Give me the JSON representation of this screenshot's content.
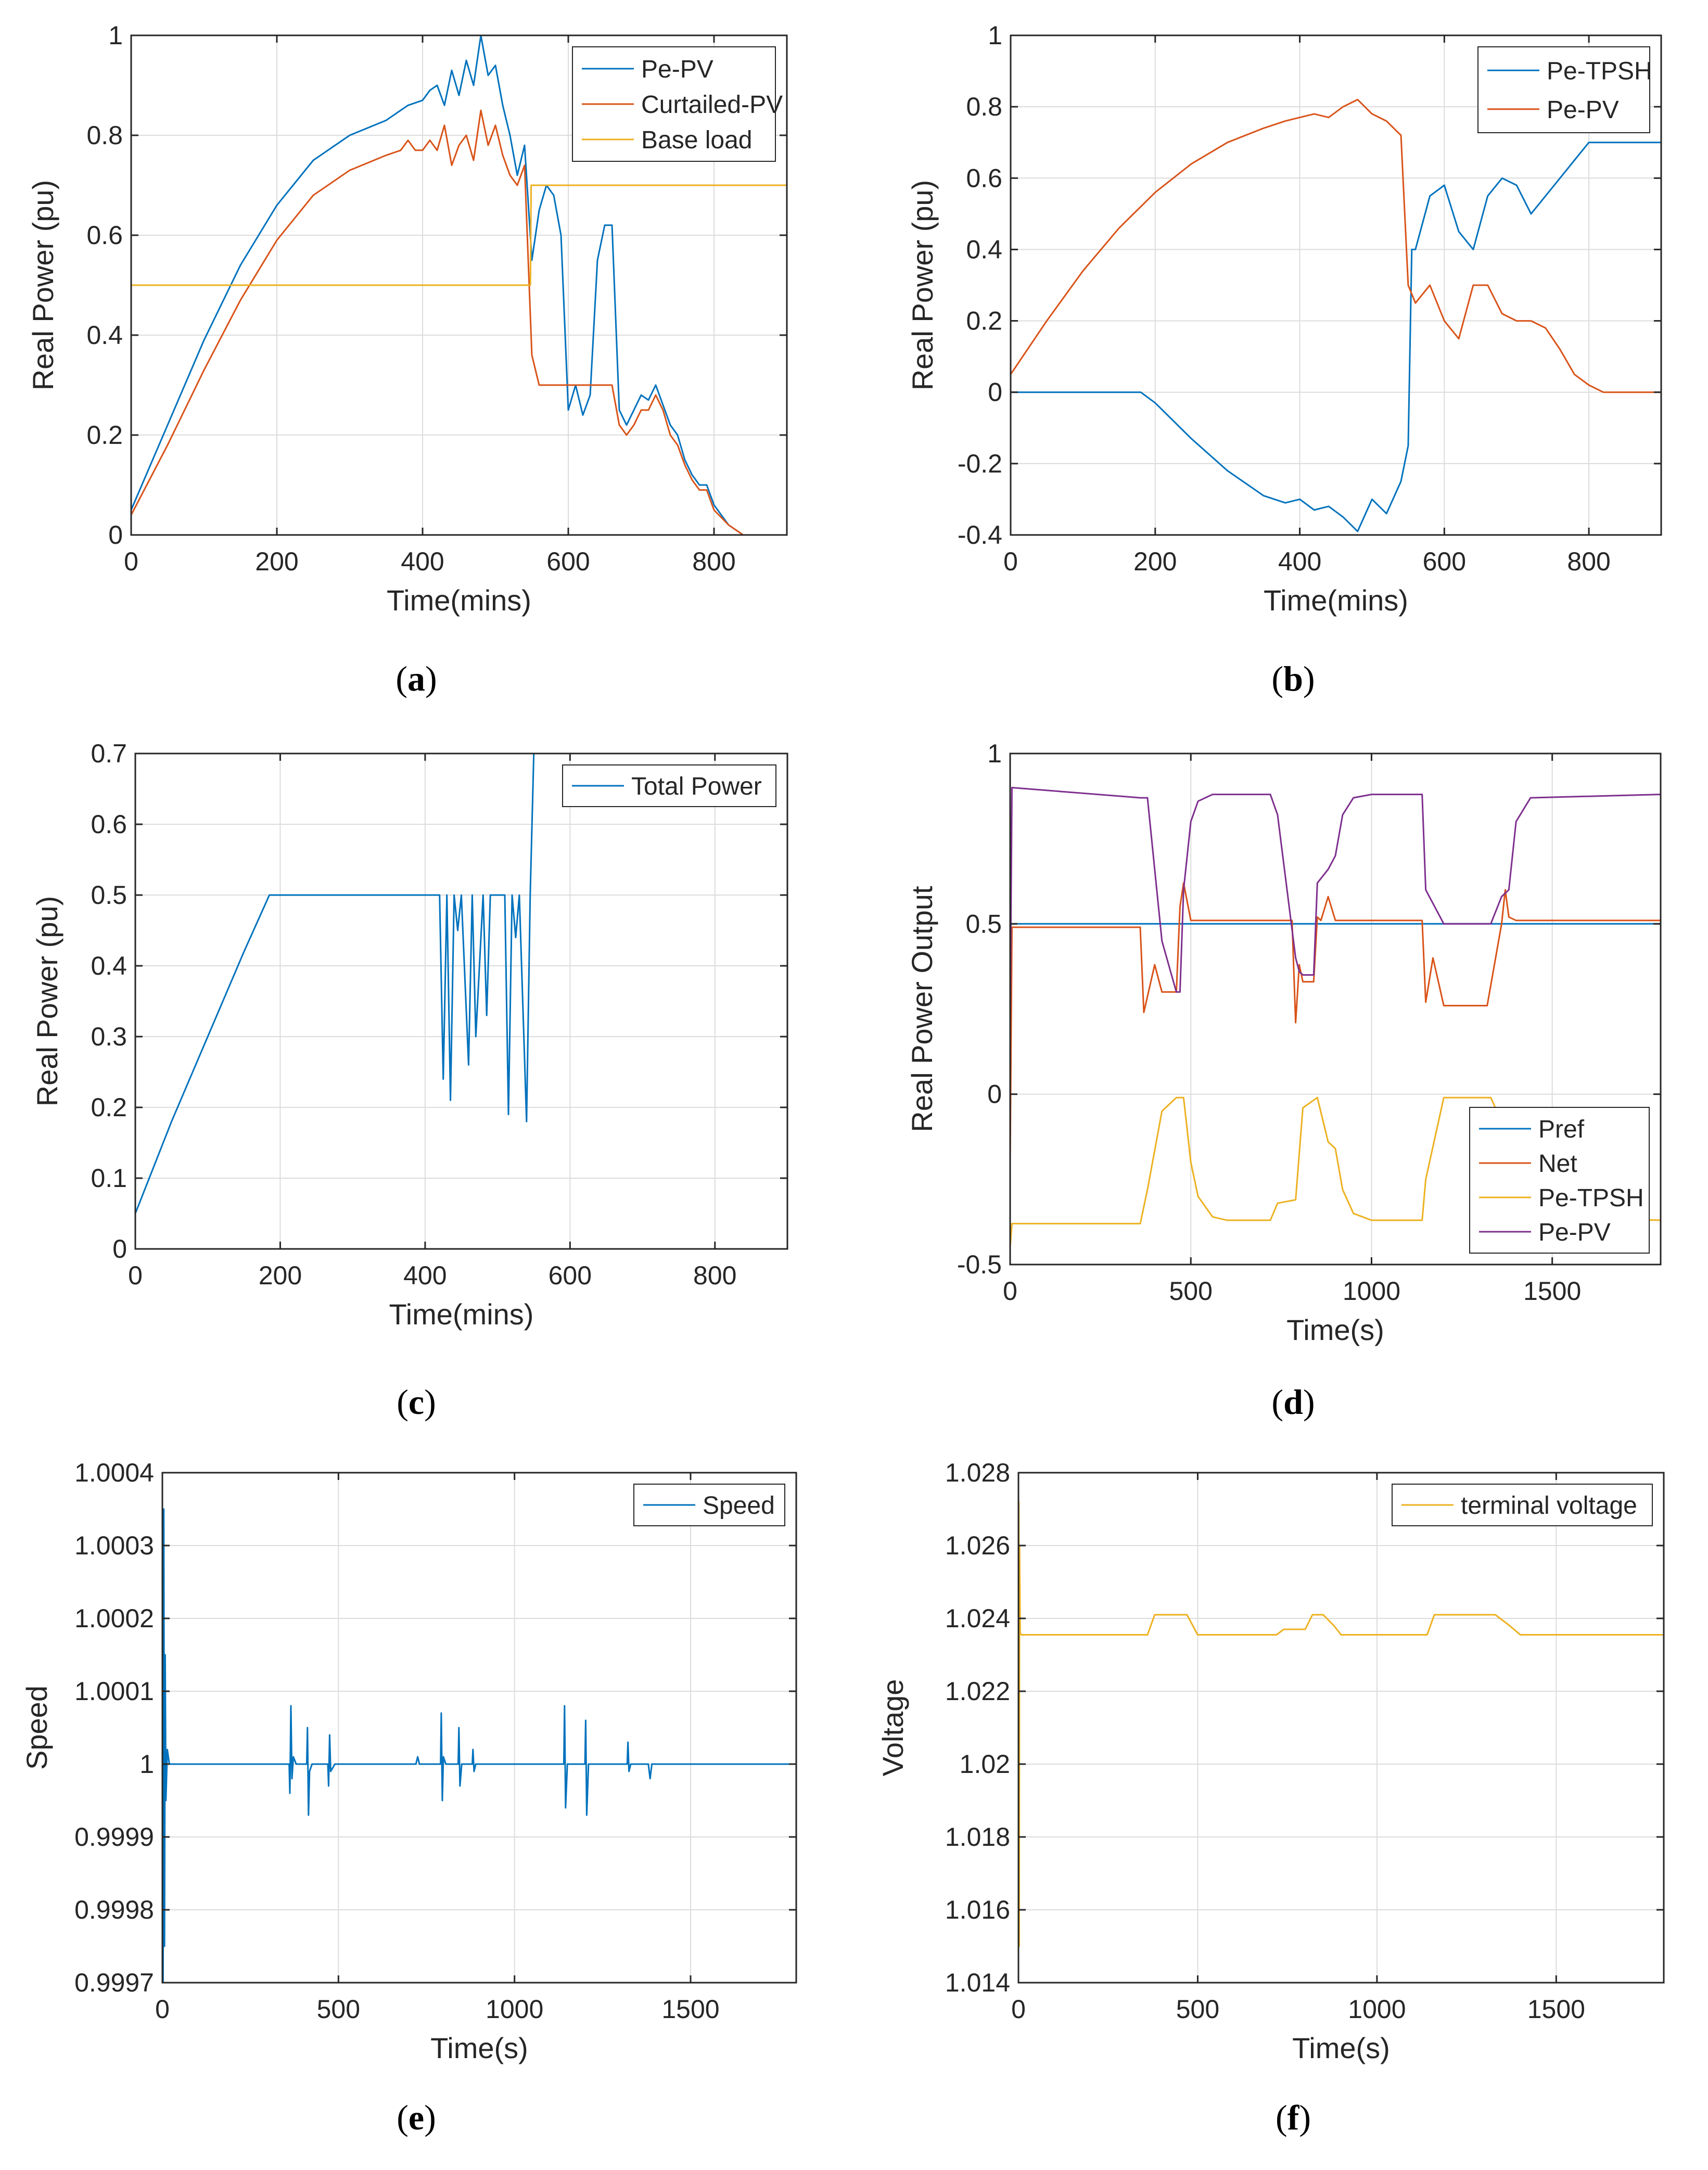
{
  "colors": {
    "blue": "#0072BD",
    "orange": "#D95319",
    "yellow": "#EDB120",
    "purple": "#7E2F8E",
    "grid": "#dcdcdc",
    "axis": "#262626"
  },
  "captions": {
    "a": "a",
    "b": "b",
    "c": "c",
    "d": "d",
    "e": "e",
    "f": "f"
  },
  "chart_data": [
    {
      "id": "a",
      "type": "line",
      "xlabel": "Time(mins)",
      "ylabel": "Real Power (pu)",
      "xlim": [
        0,
        900
      ],
      "ylim": [
        0,
        1
      ],
      "xticks": [
        0,
        200,
        400,
        600,
        800
      ],
      "yticks": [
        0,
        0.2,
        0.4,
        0.6,
        0.8,
        1
      ],
      "xtick_labels": [
        "0",
        "200",
        "400",
        "600",
        "800"
      ],
      "ytick_labels": [
        "0",
        "0.2",
        "0.4",
        "0.6",
        "0.8",
        "1"
      ],
      "grid": true,
      "legend_position": "top-right",
      "series": [
        {
          "name": "Pe-PV",
          "color": "#0072BD",
          "x": [
            0,
            50,
            100,
            150,
            200,
            250,
            300,
            350,
            380,
            400,
            410,
            420,
            430,
            440,
            450,
            460,
            470,
            480,
            490,
            500,
            510,
            520,
            530,
            540,
            550,
            560,
            570,
            580,
            590,
            600,
            610,
            620,
            630,
            640,
            650,
            660,
            670,
            680,
            690,
            700,
            710,
            720,
            730,
            740,
            750,
            760,
            770,
            780,
            790,
            800,
            820,
            840,
            860,
            900
          ],
          "y": [
            0.05,
            0.22,
            0.39,
            0.54,
            0.66,
            0.75,
            0.8,
            0.83,
            0.86,
            0.87,
            0.89,
            0.9,
            0.86,
            0.93,
            0.88,
            0.95,
            0.9,
            1.0,
            0.92,
            0.94,
            0.86,
            0.8,
            0.72,
            0.78,
            0.55,
            0.65,
            0.7,
            0.68,
            0.6,
            0.25,
            0.3,
            0.24,
            0.28,
            0.55,
            0.62,
            0.62,
            0.25,
            0.22,
            0.25,
            0.28,
            0.27,
            0.3,
            0.26,
            0.22,
            0.2,
            0.15,
            0.12,
            0.1,
            0.1,
            0.06,
            0.02,
            0.0,
            0.0,
            0.0
          ]
        },
        {
          "name": "Curtailed-PV",
          "color": "#D95319",
          "x": [
            0,
            50,
            100,
            150,
            200,
            250,
            300,
            350,
            370,
            380,
            390,
            400,
            410,
            420,
            430,
            440,
            450,
            460,
            470,
            480,
            490,
            500,
            510,
            520,
            530,
            540,
            550,
            560,
            570,
            580,
            590,
            600,
            610,
            620,
            630,
            640,
            650,
            660,
            670,
            680,
            690,
            700,
            710,
            720,
            730,
            740,
            750,
            760,
            770,
            780,
            790,
            800,
            820,
            840,
            860,
            900
          ],
          "y": [
            0.04,
            0.18,
            0.33,
            0.47,
            0.59,
            0.68,
            0.73,
            0.76,
            0.77,
            0.79,
            0.77,
            0.77,
            0.79,
            0.77,
            0.82,
            0.74,
            0.78,
            0.8,
            0.75,
            0.85,
            0.78,
            0.82,
            0.76,
            0.72,
            0.7,
            0.74,
            0.36,
            0.3,
            0.3,
            0.3,
            0.3,
            0.3,
            0.3,
            0.3,
            0.3,
            0.3,
            0.3,
            0.3,
            0.22,
            0.2,
            0.22,
            0.25,
            0.25,
            0.28,
            0.25,
            0.2,
            0.18,
            0.14,
            0.11,
            0.09,
            0.09,
            0.05,
            0.02,
            0.0,
            0.0,
            0.0
          ]
        },
        {
          "name": "Base load",
          "color": "#EDB120",
          "x": [
            0,
            548,
            549,
            900
          ],
          "y": [
            0.5,
            0.5,
            0.7,
            0.7
          ]
        }
      ]
    },
    {
      "id": "b",
      "type": "line",
      "xlabel": "Time(mins)",
      "ylabel": "Real Power (pu)",
      "xlim": [
        0,
        900
      ],
      "ylim": [
        -0.4,
        1
      ],
      "xticks": [
        0,
        200,
        400,
        600,
        800
      ],
      "yticks": [
        -0.4,
        -0.2,
        0,
        0.2,
        0.4,
        0.6,
        0.8,
        1
      ],
      "xtick_labels": [
        "0",
        "200",
        "400",
        "600",
        "800"
      ],
      "ytick_labels": [
        "-0.4",
        "-0.2",
        "0",
        "0.2",
        "0.4",
        "0.6",
        "0.8",
        "1"
      ],
      "grid": true,
      "legend_position": "top-right",
      "series": [
        {
          "name": "Pe-TPSH",
          "color": "#0072BD",
          "x": [
            0,
            180,
            200,
            250,
            300,
            350,
            380,
            400,
            420,
            440,
            460,
            480,
            500,
            520,
            540,
            550,
            555,
            560,
            580,
            600,
            620,
            640,
            660,
            680,
            700,
            720,
            740,
            760,
            780,
            800,
            850,
            900
          ],
          "y": [
            0,
            0,
            -0.03,
            -0.13,
            -0.22,
            -0.29,
            -0.31,
            -0.3,
            -0.33,
            -0.32,
            -0.35,
            -0.39,
            -0.3,
            -0.34,
            -0.25,
            -0.15,
            0.4,
            0.4,
            0.55,
            0.58,
            0.45,
            0.4,
            0.55,
            0.6,
            0.58,
            0.5,
            0.55,
            0.6,
            0.65,
            0.7,
            0.7,
            0.7
          ]
        },
        {
          "name": "Pe-PV",
          "color": "#D95319",
          "x": [
            0,
            50,
            100,
            150,
            200,
            250,
            300,
            350,
            380,
            400,
            420,
            440,
            460,
            480,
            500,
            520,
            540,
            550,
            560,
            580,
            600,
            620,
            640,
            660,
            680,
            700,
            720,
            740,
            760,
            780,
            800,
            820,
            840,
            900
          ],
          "y": [
            0.05,
            0.2,
            0.34,
            0.46,
            0.56,
            0.64,
            0.7,
            0.74,
            0.76,
            0.77,
            0.78,
            0.77,
            0.8,
            0.82,
            0.78,
            0.76,
            0.72,
            0.3,
            0.25,
            0.3,
            0.2,
            0.15,
            0.3,
            0.3,
            0.22,
            0.2,
            0.2,
            0.18,
            0.12,
            0.05,
            0.02,
            0.0,
            0.0,
            0.0
          ]
        }
      ]
    },
    {
      "id": "c",
      "type": "line",
      "xlabel": "Time(mins)",
      "ylabel": "Real Power (pu)",
      "xlim": [
        0,
        900
      ],
      "ylim": [
        0,
        0.7
      ],
      "xticks": [
        0,
        200,
        400,
        600,
        800
      ],
      "yticks": [
        0,
        0.1,
        0.2,
        0.3,
        0.4,
        0.5,
        0.6,
        0.7
      ],
      "xtick_labels": [
        "0",
        "200",
        "400",
        "600",
        "800"
      ],
      "ytick_labels": [
        "0",
        "0.1",
        "0.2",
        "0.3",
        "0.4",
        "0.5",
        "0.6",
        "0.7"
      ],
      "grid": true,
      "legend_position": "top-right",
      "series": [
        {
          "name": "Total Power",
          "color": "#0072BD",
          "x": [
            0,
            50,
            100,
            150,
            185,
            420,
            425,
            430,
            435,
            440,
            445,
            450,
            460,
            465,
            470,
            480,
            485,
            490,
            500,
            510,
            515,
            520,
            525,
            530,
            540,
            545,
            550,
            900
          ],
          "y": [
            0.05,
            0.18,
            0.3,
            0.42,
            0.5,
            0.5,
            0.24,
            0.5,
            0.21,
            0.5,
            0.45,
            0.5,
            0.26,
            0.5,
            0.3,
            0.5,
            0.33,
            0.5,
            0.5,
            0.5,
            0.19,
            0.5,
            0.44,
            0.5,
            0.18,
            0.5,
            0.7,
            0.7
          ]
        }
      ]
    },
    {
      "id": "d",
      "type": "line",
      "xlabel": "Time(s)",
      "ylabel": "Real Power Output",
      "xlim": [
        0,
        1800
      ],
      "ylim": [
        -0.5,
        1
      ],
      "xticks": [
        0,
        500,
        1000,
        1500
      ],
      "yticks": [
        -0.5,
        0,
        0.5,
        1
      ],
      "xtick_labels": [
        "0",
        "500",
        "1000",
        "1500"
      ],
      "ytick_labels": [
        "-0.5",
        "0",
        "0.5",
        "1"
      ],
      "grid": true,
      "legend_position": "bottom-right",
      "series": [
        {
          "name": "Pref",
          "color": "#0072BD",
          "x": [
            0,
            1800
          ],
          "y": [
            0.5,
            0.5
          ]
        },
        {
          "name": "Net",
          "color": "#D95319",
          "x": [
            0,
            5,
            360,
            370,
            400,
            420,
            460,
            470,
            480,
            500,
            700,
            720,
            780,
            790,
            800,
            810,
            840,
            850,
            860,
            880,
            900,
            1000,
            1140,
            1150,
            1170,
            1200,
            1320,
            1360,
            1370,
            1380,
            1400,
            1800
          ],
          "y": [
            -0.2,
            0.49,
            0.49,
            0.24,
            0.38,
            0.3,
            0.3,
            0.55,
            0.62,
            0.51,
            0.51,
            0.51,
            0.51,
            0.21,
            0.38,
            0.33,
            0.33,
            0.52,
            0.51,
            0.58,
            0.51,
            0.51,
            0.51,
            0.27,
            0.4,
            0.26,
            0.26,
            0.5,
            0.6,
            0.52,
            0.51,
            0.51
          ]
        },
        {
          "name": "Pe-TPSH",
          "color": "#EDB120",
          "x": [
            0,
            5,
            360,
            380,
            420,
            460,
            480,
            500,
            520,
            560,
            600,
            720,
            740,
            790,
            810,
            850,
            880,
            900,
            920,
            950,
            1000,
            1140,
            1150,
            1200,
            1330,
            1360,
            1380,
            1400,
            1440,
            1800
          ],
          "y": [
            -0.45,
            -0.38,
            -0.38,
            -0.28,
            -0.05,
            -0.01,
            -0.01,
            -0.2,
            -0.3,
            -0.36,
            -0.37,
            -0.37,
            -0.32,
            -0.31,
            -0.04,
            -0.01,
            -0.14,
            -0.16,
            -0.28,
            -0.35,
            -0.37,
            -0.37,
            -0.25,
            -0.01,
            -0.01,
            -0.08,
            -0.09,
            -0.28,
            -0.36,
            -0.37
          ]
        },
        {
          "name": "Pe-PV",
          "color": "#7E2F8E",
          "x": [
            0,
            5,
            360,
            380,
            420,
            460,
            470,
            480,
            500,
            520,
            560,
            600,
            720,
            740,
            790,
            800,
            810,
            840,
            850,
            880,
            900,
            920,
            950,
            1000,
            1140,
            1150,
            1200,
            1330,
            1360,
            1380,
            1400,
            1440,
            1800
          ],
          "y": [
            0.2,
            0.9,
            0.87,
            0.87,
            0.45,
            0.3,
            0.3,
            0.6,
            0.8,
            0.86,
            0.88,
            0.88,
            0.88,
            0.82,
            0.4,
            0.36,
            0.35,
            0.35,
            0.62,
            0.66,
            0.7,
            0.82,
            0.87,
            0.88,
            0.88,
            0.6,
            0.5,
            0.5,
            0.58,
            0.6,
            0.8,
            0.87,
            0.88
          ]
        }
      ]
    },
    {
      "id": "e",
      "type": "line",
      "xlabel": "Time(s)",
      "ylabel": "Speed",
      "xlim": [
        0,
        1800
      ],
      "ylim": [
        0.9997,
        1.0004
      ],
      "xticks": [
        0,
        500,
        1000,
        1500
      ],
      "yticks": [
        0.9997,
        0.9998,
        0.9999,
        1,
        1.0001,
        1.0002,
        1.0003,
        1.0004
      ],
      "xtick_labels": [
        "0",
        "500",
        "1000",
        "1500"
      ],
      "ytick_labels": [
        "0.9997",
        "0.9998",
        "0.9999",
        "1",
        "1.0001",
        "1.0002",
        "1.0003",
        "1.0004"
      ],
      "grid": true,
      "legend_position": "top-right",
      "series": [
        {
          "name": "Speed",
          "color": "#0072BD",
          "x": [
            0,
            2,
            4,
            6,
            8,
            10,
            14,
            20,
            360,
            362,
            365,
            368,
            372,
            380,
            410,
            412,
            415,
            418,
            425,
            470,
            472,
            475,
            478,
            490,
            720,
            725,
            730,
            790,
            792,
            795,
            798,
            805,
            840,
            842,
            845,
            850,
            880,
            882,
            885,
            890,
            1140,
            1142,
            1145,
            1150,
            1200,
            1202,
            1205,
            1210,
            1320,
            1322,
            1325,
            1330,
            1380,
            1385,
            1390,
            1800
          ],
          "y": [
            1.0,
            0.9997,
            1.00035,
            0.99975,
            1.00015,
            0.99995,
            1.00002,
            1.0,
            1.0,
            0.99996,
            1.00008,
            0.99998,
            1.00001,
            1.0,
            1.0,
            1.00005,
            0.99993,
            0.99999,
            1.0,
            1.0,
            0.99997,
            1.00004,
            0.99999,
            1.0,
            1.0,
            1.00001,
            1.0,
            1.0,
            1.00007,
            0.99995,
            1.00001,
            1.0,
            1.0,
            1.00005,
            0.99997,
            1.0,
            1.0,
            1.00002,
            0.99999,
            1.0,
            1.0,
            1.00008,
            0.99994,
            1.0,
            1.0,
            1.00006,
            0.99993,
            1.0,
            1.0,
            1.00003,
            0.99999,
            1.0,
            1.0,
            0.99998,
            1.0,
            1.0
          ]
        }
      ]
    },
    {
      "id": "f",
      "type": "line",
      "xlabel": "Time(s)",
      "ylabel": "Voltage",
      "xlim": [
        0,
        1800
      ],
      "ylim": [
        1.014,
        1.028
      ],
      "xticks": [
        0,
        500,
        1000,
        1500
      ],
      "yticks": [
        1.014,
        1.016,
        1.018,
        1.02,
        1.022,
        1.024,
        1.026,
        1.028
      ],
      "xtick_labels": [
        "0",
        "500",
        "1000",
        "1500"
      ],
      "ytick_labels": [
        "1.014",
        "1.016",
        "1.018",
        "1.02",
        "1.022",
        "1.024",
        "1.026",
        "1.028"
      ],
      "grid": true,
      "legend_position": "top-right",
      "series": [
        {
          "name": "terminal voltage",
          "color": "#EDB120",
          "x": [
            0,
            1,
            2,
            3,
            5,
            8,
            360,
            380,
            470,
            500,
            720,
            740,
            800,
            820,
            850,
            880,
            900,
            1140,
            1160,
            1330,
            1370,
            1400,
            1800
          ],
          "y": [
            1.0145,
            1.0272,
            1.015,
            1.026,
            1.0236,
            1.02355,
            1.02355,
            1.0241,
            1.0241,
            1.02355,
            1.02355,
            1.0237,
            1.0237,
            1.0241,
            1.0241,
            1.0238,
            1.02355,
            1.02355,
            1.0241,
            1.0241,
            1.0238,
            1.02355,
            1.02355
          ]
        }
      ]
    }
  ]
}
